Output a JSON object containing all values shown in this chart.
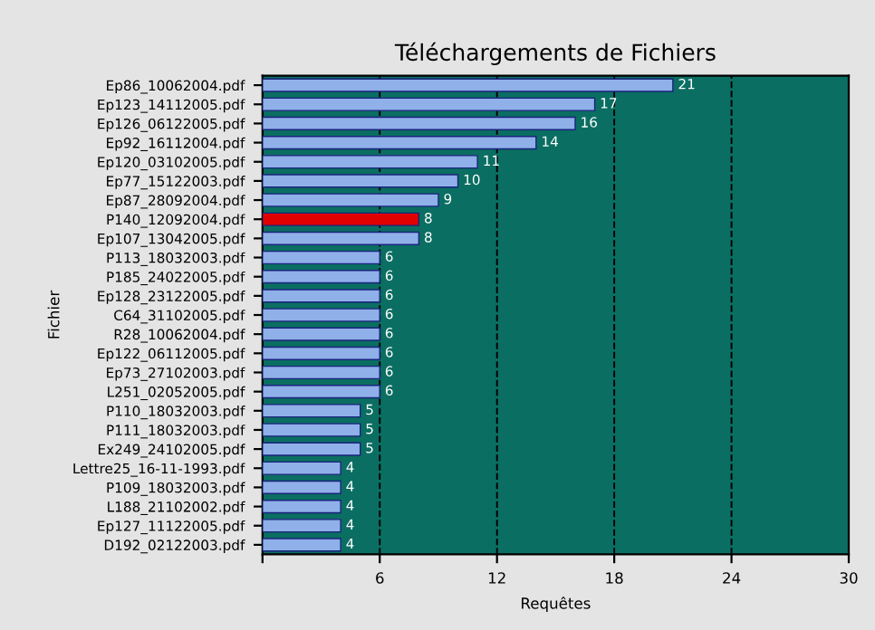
{
  "chart_data": {
    "type": "bar",
    "orientation": "horizontal",
    "title": "Téléchargements de Fichiers",
    "xlabel": "Requêtes",
    "ylabel": "Fichier",
    "categories": [
      "Ep86_10062004.pdf",
      "Ep123_14112005.pdf",
      "Ep126_06122005.pdf",
      "Ep92_16112004.pdf",
      "Ep120_03102005.pdf",
      "Ep77_15122003.pdf",
      "Ep87_28092004.pdf",
      "P140_12092004.pdf",
      "Ep107_13042005.pdf",
      "P113_18032003.pdf",
      "P185_24022005.pdf",
      "Ep128_23122005.pdf",
      "C64_31102005.pdf",
      "R28_10062004.pdf",
      "Ep122_06112005.pdf",
      "Ep73_27102003.pdf",
      "L251_02052005.pdf",
      "P110_18032003.pdf",
      "P111_18032003.pdf",
      "Ex249_24102005.pdf",
      "Lettre25_16-11-1993.pdf",
      "P109_18032003.pdf",
      "L188_21102002.pdf",
      "Ep127_11122005.pdf",
      "D192_02122003.pdf"
    ],
    "values": [
      21,
      17,
      16,
      14,
      11,
      10,
      9,
      8,
      8,
      6,
      6,
      6,
      6,
      6,
      6,
      6,
      6,
      5,
      5,
      5,
      4,
      4,
      4,
      4,
      4
    ],
    "colors": [
      "#8fb0e8",
      "#8fb0e8",
      "#8fb0e8",
      "#8fb0e8",
      "#8fb0e8",
      "#8fb0e8",
      "#8fb0e8",
      "#e00000",
      "#8fb0e8",
      "#8fb0e8",
      "#8fb0e8",
      "#8fb0e8",
      "#8fb0e8",
      "#8fb0e8",
      "#8fb0e8",
      "#8fb0e8",
      "#8fb0e8",
      "#8fb0e8",
      "#8fb0e8",
      "#8fb0e8",
      "#8fb0e8",
      "#8fb0e8",
      "#8fb0e8",
      "#8fb0e8",
      "#8fb0e8"
    ],
    "xlim": [
      0,
      30
    ],
    "xticks": [
      {
        "value": 0,
        "label": null
      },
      6,
      12,
      18,
      24,
      30
    ],
    "grid": "x",
    "data_labels": true
  }
}
